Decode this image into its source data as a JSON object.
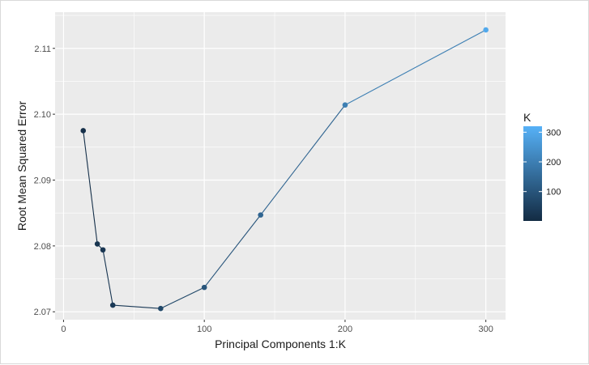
{
  "chart_data": {
    "type": "line",
    "title": "",
    "xlabel": "Principal Components 1:K",
    "ylabel": "Root Mean Squared Error",
    "xlim": [
      -6,
      314
    ],
    "ylim": [
      2.0688,
      2.1155
    ],
    "x_ticks": [
      0,
      100,
      200,
      300
    ],
    "y_ticks": [
      2.07,
      2.08,
      2.09,
      2.1,
      2.11
    ],
    "x_tick_labels": [
      "0",
      "100",
      "200",
      "300"
    ],
    "y_tick_labels": [
      "2.07",
      "2.08",
      "2.09",
      "2.10",
      "2.11"
    ],
    "grid": true,
    "series": [
      {
        "x": [
          14,
          24,
          28,
          35,
          69,
          100,
          140,
          200,
          300
        ],
        "y": [
          2.0975,
          2.0803,
          2.0794,
          2.071,
          2.0705,
          2.0737,
          2.0847,
          2.1014,
          2.1128
        ]
      }
    ],
    "color_scale": {
      "variable": "K",
      "title": "K",
      "range": [
        1,
        320
      ],
      "ticks": [
        100,
        200,
        300
      ],
      "tick_labels": [
        "100",
        "200",
        "300"
      ],
      "low_color": "#132B43",
      "high_color": "#56B1F7",
      "legend_position": "right"
    },
    "panel_background": "#ebebeb",
    "grid_color": "#ffffff"
  }
}
